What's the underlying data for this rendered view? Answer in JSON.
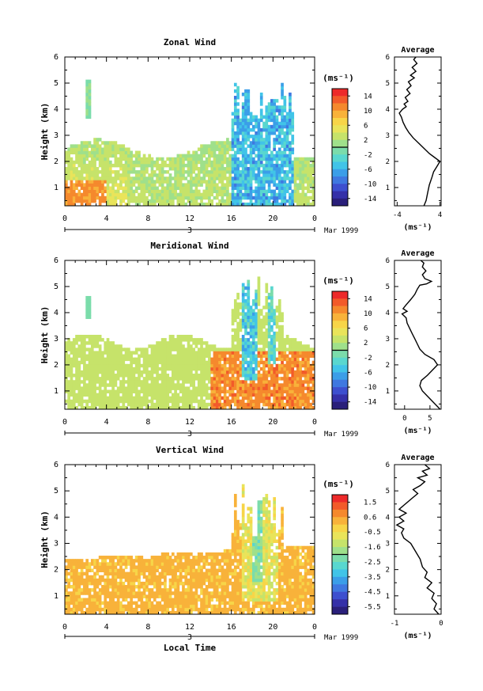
{
  "chart_data": [
    {
      "type": "heatmap",
      "title": "Zonal Wind",
      "xlabel": "",
      "ylabel": "Height (km)",
      "x_ticks": [
        "0",
        "4",
        "8",
        "12",
        "16",
        "20",
        "0"
      ],
      "y_ticks": [
        "1",
        "2",
        "3",
        "4",
        "5",
        "6"
      ],
      "xlim": [
        0,
        24
      ],
      "ylim": [
        0.3,
        6
      ],
      "date_axis": {
        "day": "3",
        "month_year": "Mar 1999"
      },
      "colorbar": {
        "unit": "(ms⁻¹)",
        "ticks": [
          "14",
          "10",
          "6",
          "2",
          "-2",
          "-6",
          "-10",
          "-14"
        ],
        "range": [
          -16,
          16
        ]
      },
      "profile": {
        "title": "Average",
        "xlabel": "(ms⁻¹)",
        "x_ticks": [
          "-4",
          "4"
        ],
        "xlim": [
          -4.5,
          4.2
        ],
        "y_ticks": [
          "1",
          "2",
          "3",
          "4",
          "5",
          "6"
        ],
        "points": [
          [
            1.0,
            0.3
          ],
          [
            1.4,
            0.5
          ],
          [
            1.7,
            0.8
          ],
          [
            2.0,
            1.1
          ],
          [
            2.5,
            1.4
          ],
          [
            2.8,
            1.6
          ],
          [
            3.4,
            1.8
          ],
          [
            4.0,
            2.0
          ],
          [
            3.0,
            2.15
          ],
          [
            2.0,
            2.3
          ],
          [
            1.0,
            2.5
          ],
          [
            0.0,
            2.7
          ],
          [
            -1.0,
            2.9
          ],
          [
            -1.8,
            3.1
          ],
          [
            -2.4,
            3.3
          ],
          [
            -2.9,
            3.5
          ],
          [
            -3.2,
            3.7
          ],
          [
            -3.6,
            3.85
          ],
          [
            -3.0,
            4.0
          ],
          [
            -2.3,
            4.1
          ],
          [
            -2.7,
            4.2
          ],
          [
            -2.0,
            4.3
          ],
          [
            -2.5,
            4.45
          ],
          [
            -1.6,
            4.6
          ],
          [
            -2.2,
            4.75
          ],
          [
            -1.4,
            4.9
          ],
          [
            -1.9,
            5.05
          ],
          [
            -0.8,
            5.2
          ],
          [
            -1.5,
            5.3
          ],
          [
            -0.5,
            5.45
          ],
          [
            -1.2,
            5.6
          ],
          [
            -0.3,
            5.75
          ],
          [
            -0.9,
            5.9
          ],
          [
            -0.5,
            6.0
          ]
        ]
      }
    },
    {
      "type": "heatmap",
      "title": "Meridional Wind",
      "xlabel": "",
      "ylabel": "Height (km)",
      "x_ticks": [
        "0",
        "4",
        "8",
        "12",
        "16",
        "20",
        "0"
      ],
      "y_ticks": [
        "1",
        "2",
        "3",
        "4",
        "5",
        "6"
      ],
      "xlim": [
        0,
        24
      ],
      "ylim": [
        0.3,
        6
      ],
      "date_axis": {
        "day": "3",
        "month_year": "Mar 1999"
      },
      "colorbar": {
        "unit": "(ms⁻¹)",
        "ticks": [
          "14",
          "10",
          "6",
          "2",
          "-2",
          "-6",
          "-10",
          "-14"
        ],
        "range": [
          -16,
          16
        ]
      },
      "profile": {
        "title": "Average",
        "xlabel": "(ms⁻¹)",
        "x_ticks": [
          "0",
          "5"
        ],
        "xlim": [
          -2,
          7.2
        ],
        "y_ticks": [
          "1",
          "2",
          "3",
          "4",
          "5",
          "6"
        ],
        "points": [
          [
            7.0,
            0.3
          ],
          [
            5.5,
            0.6
          ],
          [
            4.5,
            0.8
          ],
          [
            3.5,
            1.0
          ],
          [
            3.0,
            1.2
          ],
          [
            3.3,
            1.4
          ],
          [
            4.5,
            1.6
          ],
          [
            5.5,
            1.8
          ],
          [
            6.5,
            2.0
          ],
          [
            5.8,
            2.2
          ],
          [
            4.0,
            2.4
          ],
          [
            3.0,
            2.6
          ],
          [
            2.5,
            2.8
          ],
          [
            2.0,
            3.0
          ],
          [
            1.5,
            3.2
          ],
          [
            1.0,
            3.4
          ],
          [
            0.5,
            3.6
          ],
          [
            0.3,
            3.8
          ],
          [
            -0.5,
            3.95
          ],
          [
            0.5,
            4.05
          ],
          [
            -0.3,
            4.15
          ],
          [
            0.3,
            4.3
          ],
          [
            1.2,
            4.5
          ],
          [
            2.0,
            4.7
          ],
          [
            2.5,
            4.9
          ],
          [
            3.0,
            5.05
          ],
          [
            4.3,
            5.1
          ],
          [
            5.3,
            5.2
          ],
          [
            4.0,
            5.3
          ],
          [
            3.5,
            5.45
          ],
          [
            4.2,
            5.6
          ],
          [
            3.5,
            5.75
          ],
          [
            3.8,
            5.9
          ],
          [
            3.2,
            6.0
          ]
        ]
      }
    },
    {
      "type": "heatmap",
      "title": "Vertical Wind",
      "xlabel": "Local Time",
      "ylabel": "Height (km)",
      "x_ticks": [
        "0",
        "4",
        "8",
        "12",
        "16",
        "20",
        "0"
      ],
      "y_ticks": [
        "1",
        "2",
        "3",
        "4",
        "5",
        "6"
      ],
      "xlim": [
        0,
        24
      ],
      "ylim": [
        0.3,
        6
      ],
      "date_axis": {
        "day": "3",
        "month_year": "Mar 1999"
      },
      "colorbar": {
        "unit": "(ms⁻¹)",
        "ticks": [
          "1.5",
          "0.6",
          "-0.5",
          "-1.6",
          "-2.5",
          "-3.5",
          "-4.5",
          "-5.5"
        ],
        "range": [
          -6,
          2
        ]
      },
      "profile": {
        "title": "Average",
        "xlabel": "(ms⁻¹)",
        "x_ticks": [
          "-1",
          "0"
        ],
        "xlim": [
          -1,
          0
        ],
        "y_ticks": [
          "1",
          "2",
          "3",
          "4",
          "5",
          "6"
        ],
        "points": [
          [
            -0.05,
            0.3
          ],
          [
            -0.15,
            0.5
          ],
          [
            -0.1,
            0.7
          ],
          [
            -0.2,
            0.9
          ],
          [
            -0.15,
            1.1
          ],
          [
            -0.3,
            1.3
          ],
          [
            -0.2,
            1.5
          ],
          [
            -0.35,
            1.7
          ],
          [
            -0.3,
            1.9
          ],
          [
            -0.4,
            2.1
          ],
          [
            -0.45,
            2.4
          ],
          [
            -0.55,
            2.7
          ],
          [
            -0.65,
            3.0
          ],
          [
            -0.8,
            3.2
          ],
          [
            -0.85,
            3.4
          ],
          [
            -0.8,
            3.55
          ],
          [
            -0.95,
            3.7
          ],
          [
            -0.8,
            3.85
          ],
          [
            -0.9,
            4.0
          ],
          [
            -0.75,
            4.15
          ],
          [
            -0.9,
            4.3
          ],
          [
            -0.8,
            4.45
          ],
          [
            -0.7,
            4.6
          ],
          [
            -0.6,
            4.75
          ],
          [
            -0.5,
            4.9
          ],
          [
            -0.6,
            5.05
          ],
          [
            -0.45,
            5.2
          ],
          [
            -0.35,
            5.35
          ],
          [
            -0.5,
            5.5
          ],
          [
            -0.3,
            5.6
          ],
          [
            -0.4,
            5.75
          ],
          [
            -0.25,
            5.85
          ],
          [
            -0.35,
            6.0
          ]
        ]
      }
    }
  ]
}
